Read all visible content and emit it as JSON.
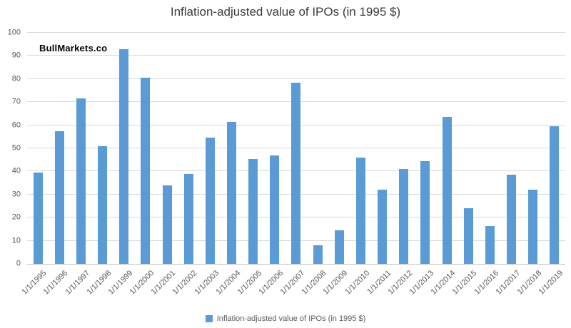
{
  "watermark": "BullMarkets.co",
  "legend": {
    "label": "Inflation-adjusted value of IPOs (in 1995 $)"
  },
  "colors": {
    "bar": "#5b9bd5",
    "grid": "#d9d9d9",
    "axis_line": "#bfbfbf",
    "axis_text": "#595959",
    "title_text": "#3b3b3b"
  },
  "chart_data": {
    "type": "bar",
    "title": "Inflation-adjusted value of IPOs (in 1995 $)",
    "categories": [
      "1/1/1995",
      "1/1/1996",
      "1/1/1997",
      "1/1/1998",
      "1/1/1999",
      "1/1/2000",
      "1/1/2001",
      "1/1/2002",
      "1/1/2003",
      "1/1/2004",
      "1/1/2005",
      "1/1/2006",
      "1/1/2007",
      "1/1/2008",
      "1/1/2009",
      "1/1/2010",
      "1/1/2011",
      "1/1/2012",
      "1/1/2013",
      "1/1/2014",
      "1/1/2015",
      "1/1/2016",
      "1/1/2017",
      "1/1/2018",
      "1/1/2019"
    ],
    "values": [
      39.5,
      57.5,
      71.5,
      51,
      93,
      80.5,
      34,
      39,
      54.5,
      61.5,
      45.5,
      47,
      78.5,
      8,
      14.5,
      46,
      32,
      41,
      44.5,
      63.5,
      24,
      16.5,
      38.5,
      32,
      59.5
    ],
    "xlabel": "",
    "ylabel": "",
    "ylim": [
      0,
      100
    ],
    "yticks": [
      0,
      10,
      20,
      30,
      40,
      50,
      60,
      70,
      80,
      90,
      100
    ],
    "grid": true,
    "legend_position": "bottom",
    "bar_color": "#5b9bd5"
  }
}
